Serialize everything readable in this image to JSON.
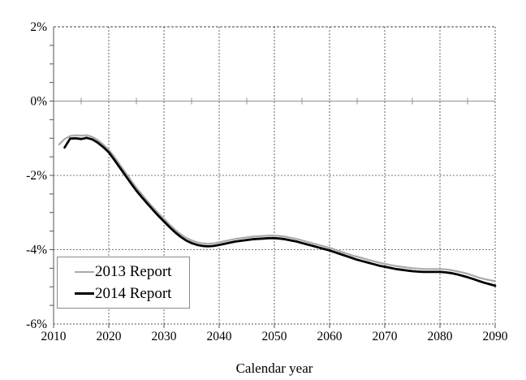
{
  "figure": {
    "x_axis_label": "Calendar year"
  },
  "colors": {
    "background": "#ffffff",
    "axis": "#555555",
    "zero_line": "#909090",
    "grid": "#666666",
    "minor_grid": "#777777",
    "text": "#000000",
    "series_2013": "#a9a9a9",
    "series_2014": "#000000",
    "legend_border": "#8a8a8a"
  },
  "chart_data": {
    "type": "line",
    "title": "",
    "xlabel": "Calendar year",
    "ylabel": "",
    "xlim": [
      2010,
      2090
    ],
    "ylim": [
      -6,
      2
    ],
    "grid": "dotted vertical each decade, dotted horizontal each 2%",
    "legend_position": "lower-left inside plot",
    "x_ticks": [
      2010,
      2020,
      2030,
      2040,
      2050,
      2060,
      2070,
      2080,
      2090
    ],
    "x_tick_labels": [
      "2010",
      "2020",
      "2030",
      "2040",
      "2050",
      "2060",
      "2070",
      "2080",
      "2090"
    ],
    "x_minor_tick_years": [
      2015,
      2025,
      2035,
      2045,
      2055,
      2065,
      2075,
      2085
    ],
    "y_ticks": [
      2,
      0,
      -2,
      -4,
      -6
    ],
    "y_tick_labels": [
      "2%",
      "0%",
      "-2%",
      "-4%",
      "-6%"
    ],
    "y_minor_step": 0.5,
    "series": [
      {
        "name": "2013 Report",
        "color": "#a9a9a9",
        "stroke_width": 2.2,
        "points": [
          [
            2011,
            -1.17
          ],
          [
            2012,
            -1.02
          ],
          [
            2013,
            -0.94
          ],
          [
            2014,
            -0.92
          ],
          [
            2015,
            -0.93
          ],
          [
            2016,
            -0.92
          ],
          [
            2017,
            -0.96
          ],
          [
            2018,
            -1.05
          ],
          [
            2019,
            -1.17
          ],
          [
            2020,
            -1.31
          ],
          [
            2021,
            -1.5
          ],
          [
            2022,
            -1.71
          ],
          [
            2023,
            -1.92
          ],
          [
            2024,
            -2.13
          ],
          [
            2025,
            -2.33
          ],
          [
            2026,
            -2.51
          ],
          [
            2027,
            -2.69
          ],
          [
            2028,
            -2.86
          ],
          [
            2029,
            -3.02
          ],
          [
            2030,
            -3.17
          ],
          [
            2031,
            -3.32
          ],
          [
            2032,
            -3.46
          ],
          [
            2033,
            -3.58
          ],
          [
            2034,
            -3.68
          ],
          [
            2035,
            -3.75
          ],
          [
            2036,
            -3.8
          ],
          [
            2037,
            -3.83
          ],
          [
            2038,
            -3.84
          ],
          [
            2039,
            -3.83
          ],
          [
            2040,
            -3.8
          ],
          [
            2041,
            -3.77
          ],
          [
            2042,
            -3.74
          ],
          [
            2043,
            -3.71
          ],
          [
            2044,
            -3.69
          ],
          [
            2045,
            -3.67
          ],
          [
            2046,
            -3.65
          ],
          [
            2047,
            -3.64
          ],
          [
            2048,
            -3.63
          ],
          [
            2049,
            -3.62
          ],
          [
            2050,
            -3.62
          ],
          [
            2051,
            -3.63
          ],
          [
            2052,
            -3.65
          ],
          [
            2053,
            -3.68
          ],
          [
            2054,
            -3.71
          ],
          [
            2055,
            -3.75
          ],
          [
            2056,
            -3.79
          ],
          [
            2057,
            -3.83
          ],
          [
            2058,
            -3.87
          ],
          [
            2059,
            -3.91
          ],
          [
            2060,
            -3.95
          ],
          [
            2061,
            -4.0
          ],
          [
            2062,
            -4.05
          ],
          [
            2063,
            -4.1
          ],
          [
            2064,
            -4.15
          ],
          [
            2065,
            -4.19
          ],
          [
            2066,
            -4.23
          ],
          [
            2067,
            -4.27
          ],
          [
            2068,
            -4.31
          ],
          [
            2069,
            -4.35
          ],
          [
            2070,
            -4.38
          ],
          [
            2071,
            -4.41
          ],
          [
            2072,
            -4.44
          ],
          [
            2073,
            -4.46
          ],
          [
            2074,
            -4.48
          ],
          [
            2075,
            -4.5
          ],
          [
            2076,
            -4.51
          ],
          [
            2077,
            -4.52
          ],
          [
            2078,
            -4.52
          ],
          [
            2079,
            -4.52
          ],
          [
            2080,
            -4.52
          ],
          [
            2081,
            -4.53
          ],
          [
            2082,
            -4.55
          ],
          [
            2083,
            -4.58
          ],
          [
            2084,
            -4.61
          ],
          [
            2085,
            -4.65
          ],
          [
            2086,
            -4.7
          ],
          [
            2087,
            -4.75
          ],
          [
            2088,
            -4.79
          ],
          [
            2089,
            -4.82
          ],
          [
            2090,
            -4.85
          ]
        ]
      },
      {
        "name": "2014 Report",
        "color": "#000000",
        "stroke_width": 2.8,
        "points": [
          [
            2012,
            -1.25
          ],
          [
            2013,
            -1.01
          ],
          [
            2014,
            -1.0
          ],
          [
            2015,
            -1.02
          ],
          [
            2016,
            -0.99
          ],
          [
            2017,
            -1.03
          ],
          [
            2018,
            -1.12
          ],
          [
            2019,
            -1.24
          ],
          [
            2020,
            -1.38
          ],
          [
            2021,
            -1.58
          ],
          [
            2022,
            -1.79
          ],
          [
            2023,
            -2.0
          ],
          [
            2024,
            -2.21
          ],
          [
            2025,
            -2.41
          ],
          [
            2026,
            -2.59
          ],
          [
            2027,
            -2.76
          ],
          [
            2028,
            -2.93
          ],
          [
            2029,
            -3.09
          ],
          [
            2030,
            -3.24
          ],
          [
            2031,
            -3.39
          ],
          [
            2032,
            -3.53
          ],
          [
            2033,
            -3.65
          ],
          [
            2034,
            -3.75
          ],
          [
            2035,
            -3.82
          ],
          [
            2036,
            -3.87
          ],
          [
            2037,
            -3.9
          ],
          [
            2038,
            -3.91
          ],
          [
            2039,
            -3.9
          ],
          [
            2040,
            -3.87
          ],
          [
            2041,
            -3.84
          ],
          [
            2042,
            -3.81
          ],
          [
            2043,
            -3.78
          ],
          [
            2044,
            -3.76
          ],
          [
            2045,
            -3.74
          ],
          [
            2046,
            -3.72
          ],
          [
            2047,
            -3.71
          ],
          [
            2048,
            -3.7
          ],
          [
            2049,
            -3.69
          ],
          [
            2050,
            -3.69
          ],
          [
            2051,
            -3.7
          ],
          [
            2052,
            -3.72
          ],
          [
            2053,
            -3.75
          ],
          [
            2054,
            -3.78
          ],
          [
            2055,
            -3.82
          ],
          [
            2056,
            -3.86
          ],
          [
            2057,
            -3.9
          ],
          [
            2058,
            -3.94
          ],
          [
            2059,
            -3.98
          ],
          [
            2060,
            -4.02
          ],
          [
            2061,
            -4.07
          ],
          [
            2062,
            -4.12
          ],
          [
            2063,
            -4.17
          ],
          [
            2064,
            -4.22
          ],
          [
            2065,
            -4.27
          ],
          [
            2066,
            -4.31
          ],
          [
            2067,
            -4.35
          ],
          [
            2068,
            -4.39
          ],
          [
            2069,
            -4.43
          ],
          [
            2070,
            -4.46
          ],
          [
            2071,
            -4.49
          ],
          [
            2072,
            -4.52
          ],
          [
            2073,
            -4.54
          ],
          [
            2074,
            -4.56
          ],
          [
            2075,
            -4.58
          ],
          [
            2076,
            -4.59
          ],
          [
            2077,
            -4.6
          ],
          [
            2078,
            -4.6
          ],
          [
            2079,
            -4.6
          ],
          [
            2080,
            -4.6
          ],
          [
            2081,
            -4.61
          ],
          [
            2082,
            -4.63
          ],
          [
            2083,
            -4.66
          ],
          [
            2084,
            -4.7
          ],
          [
            2085,
            -4.74
          ],
          [
            2086,
            -4.79
          ],
          [
            2087,
            -4.84
          ],
          [
            2088,
            -4.89
          ],
          [
            2089,
            -4.93
          ],
          [
            2090,
            -4.97
          ]
        ]
      }
    ]
  }
}
